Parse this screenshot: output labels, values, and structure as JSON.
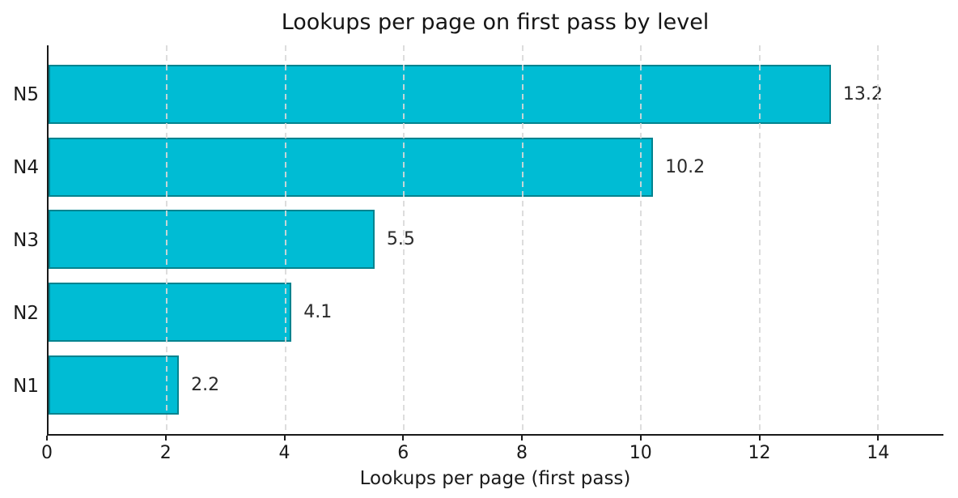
{
  "title": "Lookups per page on first pass by level",
  "colors": {
    "bar_fill": "#00bcd4",
    "bar_edge": "#00838f",
    "grid": "#d9d9d9",
    "axis": "#1a1a1a",
    "text": "#2a2a2a",
    "background": "#ffffff"
  },
  "chart_data": {
    "type": "bar",
    "orientation": "horizontal",
    "title": "Lookups per page on first pass by level",
    "categories": [
      "N5",
      "N4",
      "N3",
      "N2",
      "N1"
    ],
    "values": [
      13.2,
      10.2,
      5.5,
      4.1,
      2.2
    ],
    "value_labels": [
      "13.2",
      "10.2",
      "5.5",
      "4.1",
      "2.2"
    ],
    "xlabel": "Lookups per page (first pass)",
    "ylabel": "",
    "xticks": [
      0,
      2,
      4,
      6,
      8,
      10,
      12,
      14
    ],
    "xlim": [
      0,
      15.1
    ],
    "grid": "vertical-dashed",
    "legend": "none"
  }
}
